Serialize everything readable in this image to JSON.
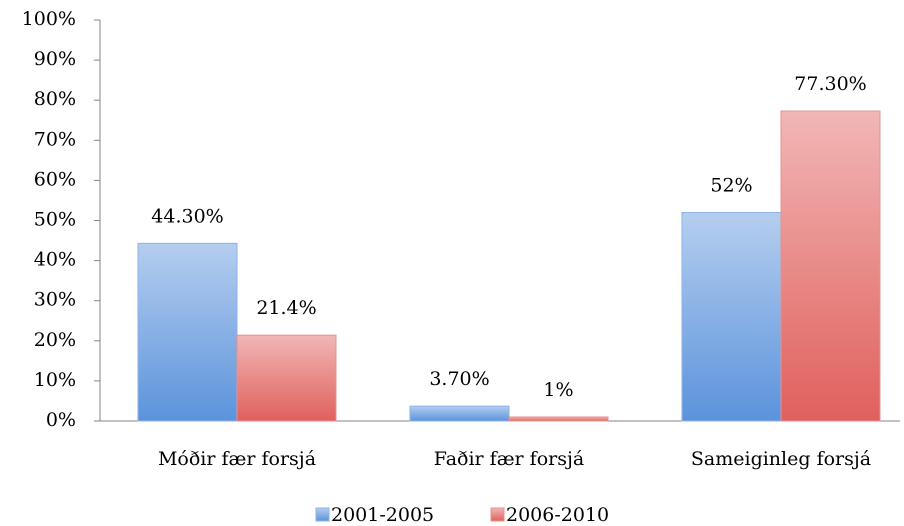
{
  "chart_data": {
    "type": "bar",
    "categories": [
      "Móðir fær forsjá",
      "Faðir fær forsjá",
      "Sameiginleg forsjá"
    ],
    "series": [
      {
        "name": "2001-2005",
        "color": "#5b93dc",
        "values": [
          44.3,
          3.7,
          52
        ],
        "value_labels": [
          "44.30%",
          "3.70%",
          "52%"
        ]
      },
      {
        "name": "2006-2010",
        "color": "#e0605c",
        "values": [
          21.4,
          1,
          77.3
        ],
        "value_labels": [
          "21.4%",
          "1%",
          "77.30%"
        ]
      }
    ],
    "ylim": [
      0,
      100
    ],
    "yticks": [
      {
        "value": 0,
        "label": "0%"
      },
      {
        "value": 10,
        "label": "10%"
      },
      {
        "value": 20,
        "label": "20%"
      },
      {
        "value": 30,
        "label": "30%"
      },
      {
        "value": 40,
        "label": "40%"
      },
      {
        "value": 50,
        "label": "50%"
      },
      {
        "value": 60,
        "label": "60%"
      },
      {
        "value": 70,
        "label": "70%"
      },
      {
        "value": 80,
        "label": "80%"
      },
      {
        "value": 90,
        "label": "90%"
      },
      {
        "value": 100,
        "label": "100%"
      }
    ],
    "grid": false,
    "legend": "bottom"
  }
}
